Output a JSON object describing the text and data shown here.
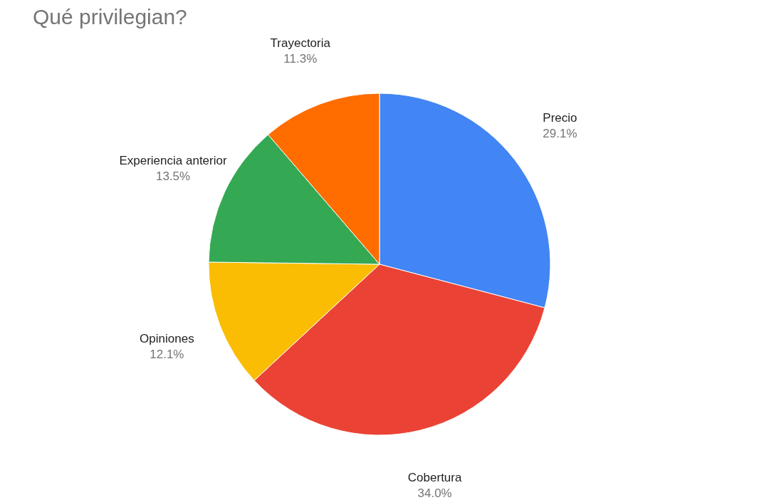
{
  "chart_data": {
    "type": "pie",
    "title": "Qué privilegian?",
    "categories": [
      "Precio",
      "Cobertura",
      "Opiniones",
      "Experiencia anterior",
      "Trayectoria"
    ],
    "values": [
      29.1,
      34.0,
      12.1,
      13.5,
      11.3
    ],
    "colors": [
      "#4285f4",
      "#ea4335",
      "#fbbc04",
      "#34a853",
      "#ff6d01"
    ],
    "value_labels": [
      "29.1%",
      "34.0%",
      "12.1%",
      "13.5%",
      "11.3%"
    ],
    "legend": false
  }
}
